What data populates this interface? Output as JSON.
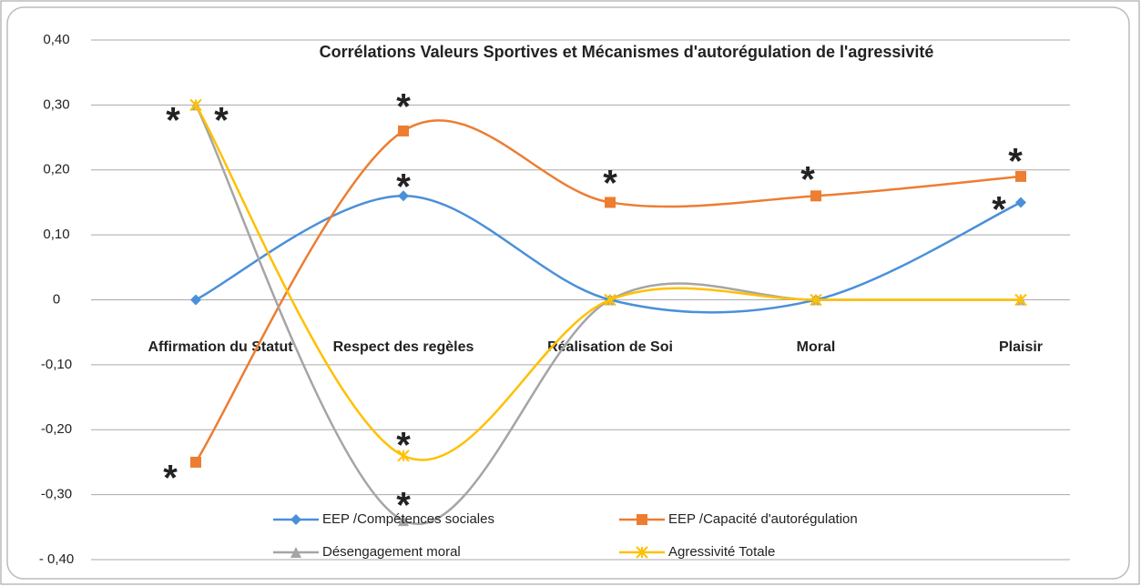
{
  "chart_data": {
    "type": "line",
    "title": "Corrélations Valeurs Sportives et  Mécanismes d'autorégulation de l'agressivité",
    "categories": [
      "Affirmation du Statut",
      "Respect des regèles",
      "Réalisation de Soi",
      "Moral",
      "Plaisir"
    ],
    "series": [
      {
        "name": "EEP /Compétences sociales",
        "color": "#4a90d9",
        "marker": "diamond",
        "values": [
          0,
          0.16,
          0,
          0,
          0.15
        ]
      },
      {
        "name": "EEP /Capacité  d'autorégulation",
        "color": "#ed7d31",
        "marker": "square",
        "values": [
          -0.25,
          0.26,
          0.15,
          0.16,
          0.19
        ]
      },
      {
        "name": "Désengagement moral",
        "color": "#a5a5a5",
        "marker": "triangle",
        "values": [
          0.3,
          -0.34,
          0,
          0,
          0
        ]
      },
      {
        "name": "Agressivité  Totale",
        "color": "#ffc000",
        "marker": "x",
        "values": [
          0.3,
          -0.24,
          0,
          0,
          0
        ]
      }
    ],
    "ylim": [
      -0.4,
      0.4
    ],
    "yticks": [
      {
        "value": -0.4,
        "label": "- 0,40"
      },
      {
        "value": -0.3,
        "label": "-0,30"
      },
      {
        "value": -0.2,
        "label": "-0,20"
      },
      {
        "value": -0.1,
        "label": "-0,10"
      },
      0,
      {
        "value": 0.1,
        "label": "0,10"
      },
      {
        "value": 0.2,
        "label": "0,20"
      },
      {
        "value": 0.3,
        "label": "0,30"
      },
      {
        "value": 0.4,
        "label": "0,40"
      }
    ],
    "grid": true,
    "smooth": true,
    "annotations": [
      "*",
      "*",
      "*",
      "*",
      "*",
      "*",
      "*",
      "*",
      "*",
      "*",
      "*"
    ]
  }
}
